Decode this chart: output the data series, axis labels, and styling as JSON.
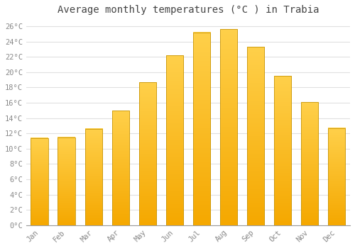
{
  "title": "Average monthly temperatures (°C ) in Trabia",
  "months": [
    "Jan",
    "Feb",
    "Mar",
    "Apr",
    "May",
    "Jun",
    "Jul",
    "Aug",
    "Sep",
    "Oct",
    "Nov",
    "Dec"
  ],
  "values": [
    11.4,
    11.5,
    12.6,
    15.0,
    18.7,
    22.2,
    25.2,
    25.6,
    23.3,
    19.5,
    16.1,
    12.7
  ],
  "bar_color_top": "#FFD04A",
  "bar_color_bottom": "#F5A800",
  "bar_edge_color": "#C8960A",
  "background_color": "#ffffff",
  "plot_bg_color": "#ffffff",
  "grid_color": "#e0e0e0",
  "tick_label_color": "#888888",
  "title_color": "#444444",
  "ylim": [
    0,
    27
  ],
  "yticks": [
    0,
    2,
    4,
    6,
    8,
    10,
    12,
    14,
    16,
    18,
    20,
    22,
    24,
    26
  ],
  "ytick_labels": [
    "0°C",
    "2°C",
    "4°C",
    "6°C",
    "8°C",
    "10°C",
    "12°C",
    "14°C",
    "16°C",
    "18°C",
    "20°C",
    "22°C",
    "24°C",
    "26°C"
  ],
  "title_fontsize": 10,
  "tick_fontsize": 7.5,
  "font_family": "monospace",
  "bar_width": 0.65
}
